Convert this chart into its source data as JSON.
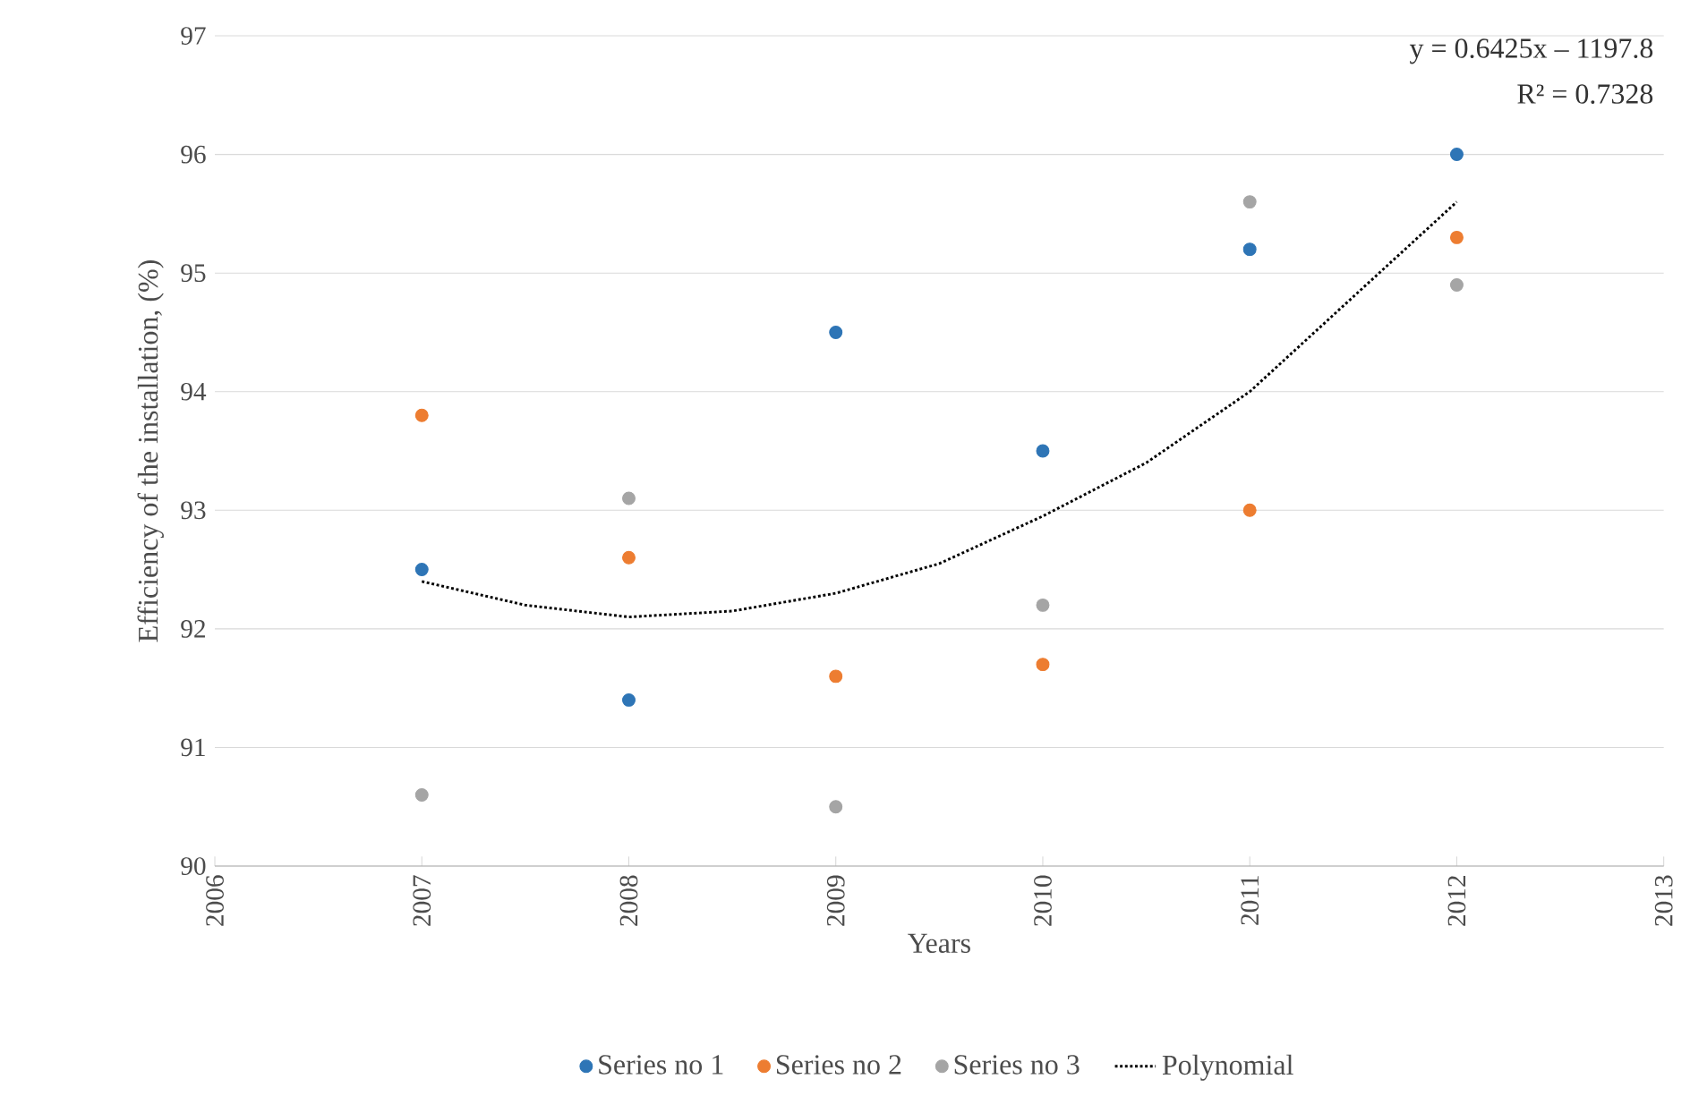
{
  "chart_data": {
    "type": "scatter",
    "xlabel": "Years",
    "ylabel": "Efficiency of the installation, (%)",
    "x": [
      2007,
      2008,
      2009,
      2010,
      2011,
      2012
    ],
    "series": [
      {
        "name": "Series no 1",
        "color": "#2e75b6",
        "values": [
          92.5,
          91.4,
          94.5,
          93.5,
          95.2,
          96.0
        ]
      },
      {
        "name": "Series no 2",
        "color": "#ed7d31",
        "values": [
          93.8,
          92.6,
          91.6,
          91.7,
          93.0,
          95.3
        ]
      },
      {
        "name": "Series no 3",
        "color": "#a5a5a5",
        "values": [
          90.6,
          93.1,
          90.5,
          92.2,
          95.6,
          94.9
        ]
      },
      {
        "name": "Polynomial",
        "type": "line",
        "color": "#000000",
        "line_style": "dotted",
        "marker": "none",
        "x": [
          2007,
          2007.5,
          2008,
          2008.5,
          2009,
          2009.5,
          2010,
          2010.5,
          2011,
          2011.5,
          2012
        ],
        "values": [
          92.4,
          92.2,
          92.1,
          92.15,
          92.3,
          92.55,
          92.95,
          93.4,
          94.0,
          94.8,
          95.6
        ]
      }
    ],
    "annotations": [
      "y = 0.6425x – 1197.8",
      "R² = 0.7328"
    ],
    "xlim": [
      2006,
      2013
    ],
    "xticks": [
      2006,
      2007,
      2008,
      2009,
      2010,
      2011,
      2012,
      2013
    ],
    "ylim": [
      90,
      97
    ],
    "yticks": [
      90,
      91,
      92,
      93,
      94,
      95,
      96,
      97
    ],
    "grid": "y",
    "legend": "bottom",
    "marker": "circle"
  }
}
